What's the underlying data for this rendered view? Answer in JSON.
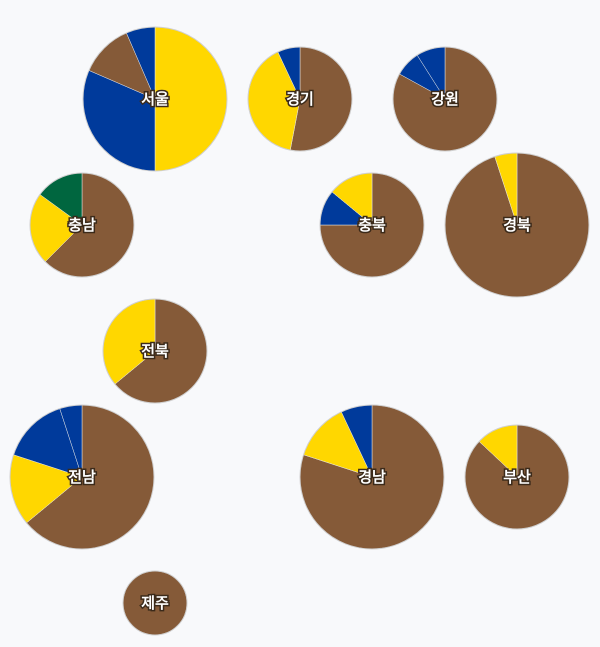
{
  "chart_data": {
    "type": "pie",
    "colors": {
      "brown": "#855a38",
      "yellow": "#ffd700",
      "blue": "#003a9b",
      "green": "#00663f"
    },
    "regions": [
      {
        "name": "서울",
        "slices": [
          {
            "color": "yellow",
            "share": 0.5
          },
          {
            "color": "blue",
            "share": 0.315
          },
          {
            "color": "brown",
            "share": 0.12
          },
          {
            "color": "blue",
            "share": 0.065
          }
        ]
      },
      {
        "name": "경기",
        "slices": [
          {
            "color": "brown",
            "share": 0.53
          },
          {
            "color": "yellow",
            "share": 0.4
          },
          {
            "color": "blue",
            "share": 0.07
          }
        ]
      },
      {
        "name": "강원",
        "slices": [
          {
            "color": "brown",
            "share": 0.83
          },
          {
            "color": "blue",
            "share": 0.08
          },
          {
            "color": "blue",
            "share": 0.09
          }
        ]
      },
      {
        "name": "충남",
        "slices": [
          {
            "color": "brown",
            "share": 0.625
          },
          {
            "color": "yellow",
            "share": 0.225
          },
          {
            "color": "green",
            "share": 0.15
          }
        ]
      },
      {
        "name": "충북",
        "slices": [
          {
            "color": "brown",
            "share": 0.75
          },
          {
            "color": "blue",
            "share": 0.11
          },
          {
            "color": "yellow",
            "share": 0.14
          }
        ]
      },
      {
        "name": "경북",
        "slices": [
          {
            "color": "brown",
            "share": 0.95
          },
          {
            "color": "yellow",
            "share": 0.05
          }
        ]
      },
      {
        "name": "전북",
        "slices": [
          {
            "color": "brown",
            "share": 0.64
          },
          {
            "color": "yellow",
            "share": 0.36
          }
        ]
      },
      {
        "name": "전남",
        "slices": [
          {
            "color": "brown",
            "share": 0.64
          },
          {
            "color": "yellow",
            "share": 0.16
          },
          {
            "color": "blue",
            "share": 0.15
          },
          {
            "color": "blue",
            "share": 0.05
          }
        ]
      },
      {
        "name": "경남",
        "slices": [
          {
            "color": "brown",
            "share": 0.8
          },
          {
            "color": "yellow",
            "share": 0.13
          },
          {
            "color": "blue",
            "share": 0.07
          }
        ]
      },
      {
        "name": "부산",
        "slices": [
          {
            "color": "brown",
            "share": 0.87
          },
          {
            "color": "yellow",
            "share": 0.13
          }
        ]
      },
      {
        "name": "제주",
        "slices": [
          {
            "color": "brown",
            "share": 1.0
          }
        ]
      }
    ]
  }
}
